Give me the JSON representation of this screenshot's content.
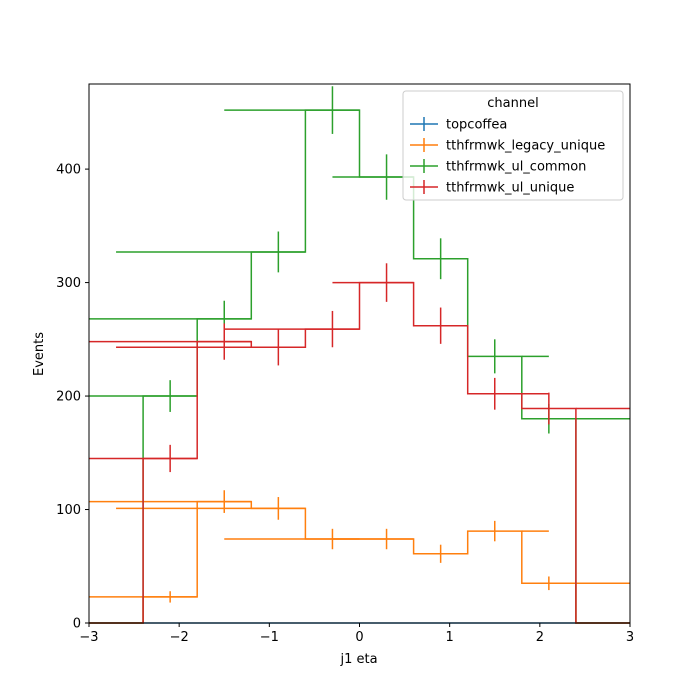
{
  "chart_data": {
    "type": "line",
    "subtype": "step-histogram-with-error-bars",
    "title": "",
    "xlabel": "j1 eta",
    "ylabel": "Events",
    "xlim": [
      -3,
      3
    ],
    "ylim": [
      0,
      475
    ],
    "grid": false,
    "legend": {
      "title": "channel",
      "placement": "top-right"
    },
    "bin_edges": [
      -3,
      -2.4,
      -1.8,
      -1.2,
      -0.6,
      0,
      0.6,
      1.2,
      1.8,
      2.4,
      3
    ],
    "bin_centers": [
      -2.7,
      -2.1,
      -1.5,
      -0.9,
      -0.3,
      0.3,
      0.9,
      1.5,
      2.1,
      2.7
    ],
    "xticks": [
      {
        "value": -3,
        "label": "−3"
      },
      {
        "value": -2,
        "label": "−2"
      },
      {
        "value": -1,
        "label": "−1"
      },
      {
        "value": 0,
        "label": "0"
      },
      {
        "value": 1,
        "label": "1"
      },
      {
        "value": 2,
        "label": "2"
      },
      {
        "value": 3,
        "label": "3"
      }
    ],
    "yticks": [
      {
        "value": 0,
        "label": "0"
      },
      {
        "value": 100,
        "label": "100"
      },
      {
        "value": 200,
        "label": "200"
      },
      {
        "value": 300,
        "label": "300"
      },
      {
        "value": 400,
        "label": "400"
      }
    ],
    "series": [
      {
        "name": "topcoffea",
        "color": "#1f77b4",
        "values": [
          0,
          0,
          0,
          0,
          0,
          0,
          0,
          0,
          0,
          0
        ],
        "errors": [
          0,
          0,
          0,
          0,
          0,
          0,
          0,
          0,
          0,
          0
        ]
      },
      {
        "name": "tthfrmwk_legacy_unique",
        "color": "#ff7f0e",
        "values": [
          0,
          23,
          107,
          101,
          74,
          74,
          61,
          81,
          35,
          0
        ],
        "errors": [
          0,
          5,
          10,
          10,
          9,
          9,
          8,
          9,
          6,
          0
        ]
      },
      {
        "name": "tthfrmwk_ul_common",
        "color": "#2ca02c",
        "values": [
          0,
          200,
          268,
          327,
          452,
          393,
          321,
          235,
          180,
          0
        ],
        "errors": [
          0,
          14,
          16,
          18,
          21,
          20,
          18,
          15,
          13,
          0
        ]
      },
      {
        "name": "tthfrmwk_ul_unique",
        "color": "#d62728",
        "values": [
          0,
          145,
          248,
          243,
          259,
          300,
          262,
          202,
          189,
          0
        ],
        "errors": [
          0,
          12,
          16,
          16,
          16,
          17,
          16,
          14,
          14,
          0
        ]
      }
    ]
  }
}
